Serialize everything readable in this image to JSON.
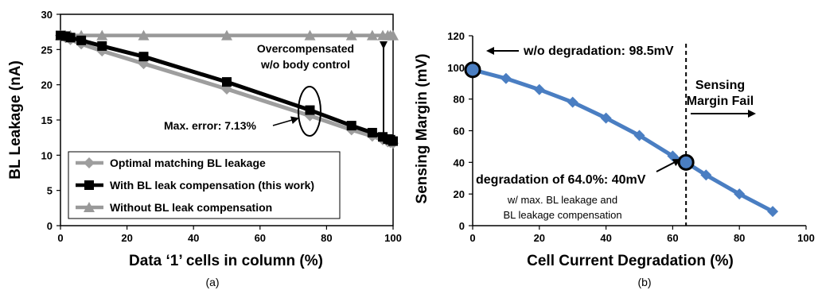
{
  "chart_data": [
    {
      "type": "line",
      "xlabel": "Data ‘1’ cells in column (%)",
      "ylabel": "BL Leakage (nA)",
      "xlim": [
        0,
        100
      ],
      "ylim": [
        0,
        30
      ],
      "xticks": [
        "0",
        "20",
        "40",
        "60",
        "80",
        "100"
      ],
      "yticks": [
        "0",
        "5",
        "10",
        "15",
        "20",
        "25",
        "30"
      ],
      "grid": false,
      "legend_position": "bottom-left",
      "caption": "(a)",
      "series": [
        {
          "name": "Optimal matching BL leakage",
          "color": "#9e9e9e",
          "marker": "diamond",
          "x": [
            0,
            1.5,
            3,
            6.25,
            12.5,
            25,
            50,
            75,
            87.5,
            93.75,
            96.9,
            98.4,
            99.2,
            100
          ],
          "y": [
            27,
            26.7,
            26.4,
            25.8,
            24.8,
            23.0,
            19.4,
            15.6,
            13.6,
            12.7,
            12.2,
            11.9,
            11.8,
            11.7
          ]
        },
        {
          "name": "With BL leak compensation  (this work)",
          "color": "#000000",
          "marker": "square",
          "x": [
            0,
            1.5,
            3,
            6.25,
            12.5,
            25,
            50,
            75,
            87.5,
            93.75,
            96.9,
            98.4,
            99.2,
            100
          ],
          "y": [
            27,
            26.9,
            26.7,
            26.3,
            25.5,
            24.0,
            20.4,
            16.4,
            14.2,
            13.2,
            12.6,
            12.3,
            12.2,
            12.0
          ]
        },
        {
          "name": "Without BL leak compensation",
          "color": "#999999",
          "marker": "triangle",
          "x": [
            0,
            1.5,
            3,
            6.25,
            12.5,
            25,
            50,
            75,
            87.5,
            93.75,
            96.9,
            98.4,
            99.2,
            100
          ],
          "y": [
            27,
            27,
            27,
            27,
            27,
            27,
            27,
            27,
            27,
            27,
            27,
            27,
            27,
            27
          ]
        }
      ],
      "annotations": {
        "overcompensated_line1": "Overcompensated",
        "overcompensated_line2": "w/o body control",
        "max_error": "Max. error: 7.13%"
      }
    },
    {
      "type": "line",
      "xlabel": "Cell Current Degradation (%)",
      "ylabel": "Sensing Margin (mV)",
      "xlim": [
        0,
        100
      ],
      "ylim": [
        0,
        120
      ],
      "xticks": [
        "0",
        "20",
        "40",
        "60",
        "80",
        "100"
      ],
      "yticks": [
        "0",
        "20",
        "40",
        "60",
        "80",
        "100",
        "120"
      ],
      "grid": false,
      "caption": "(b)",
      "series": [
        {
          "color": "#4a7ec2",
          "marker": "diamond",
          "x": [
            0,
            10,
            20,
            30,
            40,
            50,
            60,
            64,
            70,
            80,
            90
          ],
          "y": [
            98.5,
            93,
            86,
            78,
            68,
            57,
            44,
            40,
            32,
            20,
            9
          ]
        }
      ],
      "annotations": {
        "no_degradation": "w/o degradation: 98.5mV",
        "sensing_fail_line1": "Sensing",
        "sensing_fail_line2": "Margin Fail",
        "degradation_point": "degradation of 64.0%: 40mV",
        "note_line1": "w/ max. BL leakage and",
        "note_line2": "BL leakage compensation"
      },
      "fail_threshold_x": 64
    }
  ]
}
